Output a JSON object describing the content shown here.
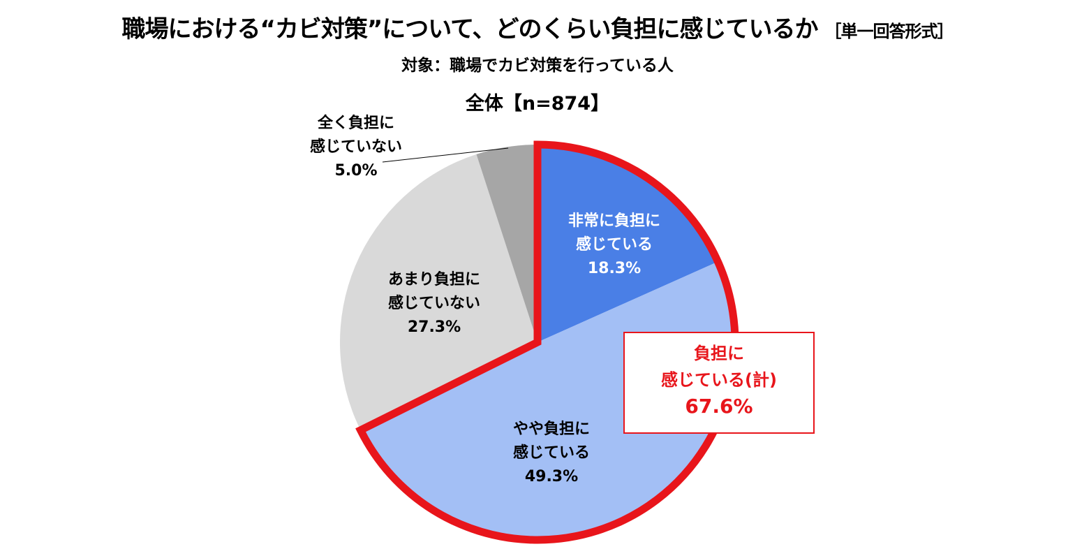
{
  "header": {
    "title": "職場における“カビ対策”について、どのくらい負担に感じているか",
    "title_tag": "［単一回答形式］",
    "subtitle": "対象：職場でカビ対策を行っている人",
    "total_label": "全体【n=874】"
  },
  "labels": {
    "s0": {
      "line1": "非常に負担に",
      "line2": "感じている",
      "value": "18.3%"
    },
    "s1": {
      "line1": "やや負担に",
      "line2": "感じている",
      "value": "49.3%"
    },
    "s2": {
      "line1": "あまり負担に",
      "line2": "感じていない",
      "value": "27.3%"
    },
    "s3": {
      "line1": "全く負担に",
      "line2": "感じていない",
      "value": "5.0%"
    }
  },
  "callout": {
    "line1": "負担に",
    "line2": "感じている(計)",
    "value": "67.6%"
  },
  "colors": {
    "s0": "#4a7fe6",
    "s1": "#a3bff5",
    "s2": "#d9d9d9",
    "s3": "#a6a6a6",
    "highlight": "#e8151b"
  },
  "chart_data": {
    "type": "pie",
    "title": "職場における“カビ対策”について、どのくらい負担に感じているか［単一回答形式］",
    "subtitle": "対象：職場でカビ対策を行っている人 / 全体【n=874】",
    "categories": [
      "非常に負担に感じている",
      "やや負担に感じている",
      "あまり負担に感じていない",
      "全く負担に感じていない"
    ],
    "values": [
      18.3,
      49.3,
      27.3,
      5.0
    ],
    "unit": "%",
    "start_angle": "12 o'clock, clockwise",
    "annotations": [
      {
        "text": "負担に感じている(計)",
        "value": 67.6,
        "covers": [
          "非常に負担に感じている",
          "やや負担に感じている"
        ]
      }
    ],
    "legend": "none (labels inside slices)"
  }
}
